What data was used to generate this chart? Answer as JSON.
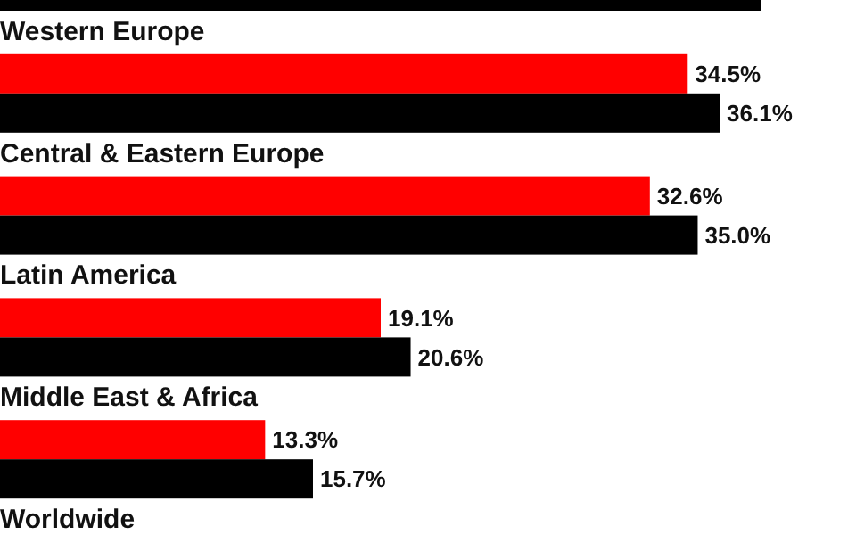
{
  "chart_data": {
    "type": "bar",
    "orientation": "horizontal",
    "categories": [
      null,
      "Western Europe",
      "Central & Eastern Europe",
      "Latin America",
      "Middle East & Africa",
      "Worldwide"
    ],
    "series": [
      {
        "color": "#ff0000",
        "values": [
          null,
          34.5,
          32.6,
          19.1,
          13.3,
          null
        ],
        "value_labels": [
          null,
          "34.5%",
          "32.6%",
          "19.1%",
          "13.3%",
          null
        ]
      },
      {
        "color": "#000000",
        "values": [
          38.2,
          36.1,
          35.0,
          20.6,
          15.7,
          null
        ],
        "value_labels": [
          null,
          "36.1%",
          "35.0%",
          "20.6%",
          "15.7%",
          null
        ]
      }
    ]
  }
}
